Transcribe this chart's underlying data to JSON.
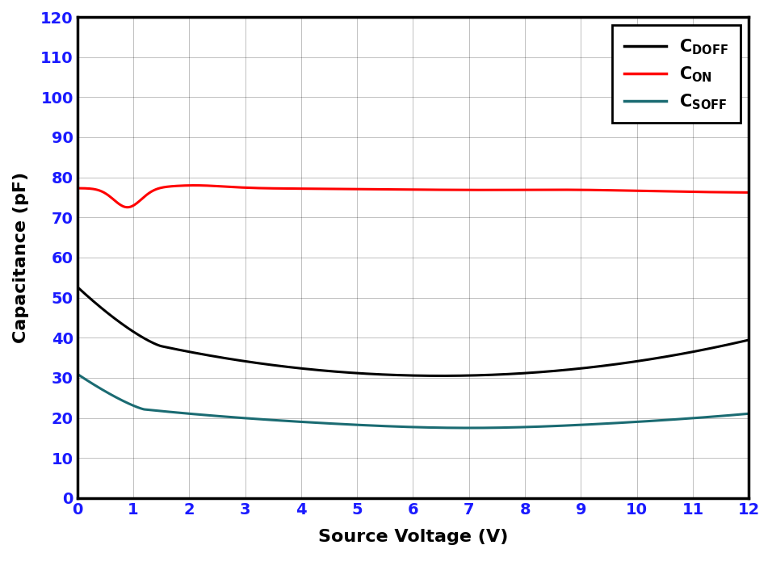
{
  "xlabel": "Source Voltage (V)",
  "ylabel": "Capacitance (pF)",
  "xlim": [
    0,
    12
  ],
  "ylim": [
    0,
    120
  ],
  "xticks": [
    0,
    1,
    2,
    3,
    4,
    5,
    6,
    7,
    8,
    9,
    10,
    11,
    12
  ],
  "yticks": [
    0,
    10,
    20,
    30,
    40,
    50,
    60,
    70,
    80,
    90,
    100,
    110,
    120
  ],
  "colors": {
    "CDOFF": "#000000",
    "CON": "#ff0000",
    "CSOFF": "#1a6b72"
  },
  "tick_label_color": "#1a1aff",
  "axis_label_color": "#000000",
  "linewidth": 2.2,
  "background": "#ffffff",
  "grid_color": "#000000",
  "grid_alpha": 0.25,
  "spine_lw": 2.5
}
